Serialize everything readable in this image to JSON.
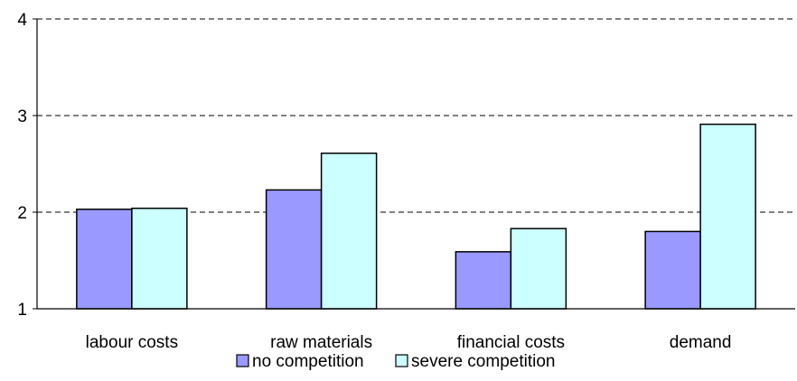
{
  "chart_data": {
    "type": "bar",
    "categories": [
      "labour costs",
      "raw materials",
      "financial costs",
      "demand"
    ],
    "series": [
      {
        "name": "no competition",
        "values": [
          2.03,
          2.23,
          1.59,
          1.8
        ],
        "color": "#9999ff"
      },
      {
        "name": "severe competition",
        "values": [
          2.04,
          2.61,
          1.83,
          2.91
        ],
        "color": "#ccffff"
      }
    ],
    "yticks": [
      "1",
      "2",
      "3",
      "4"
    ],
    "ylim": [
      1,
      4
    ],
    "grid": "horizontal dashed",
    "legend_position": "bottom",
    "title": "",
    "xlabel": "",
    "ylabel": ""
  }
}
